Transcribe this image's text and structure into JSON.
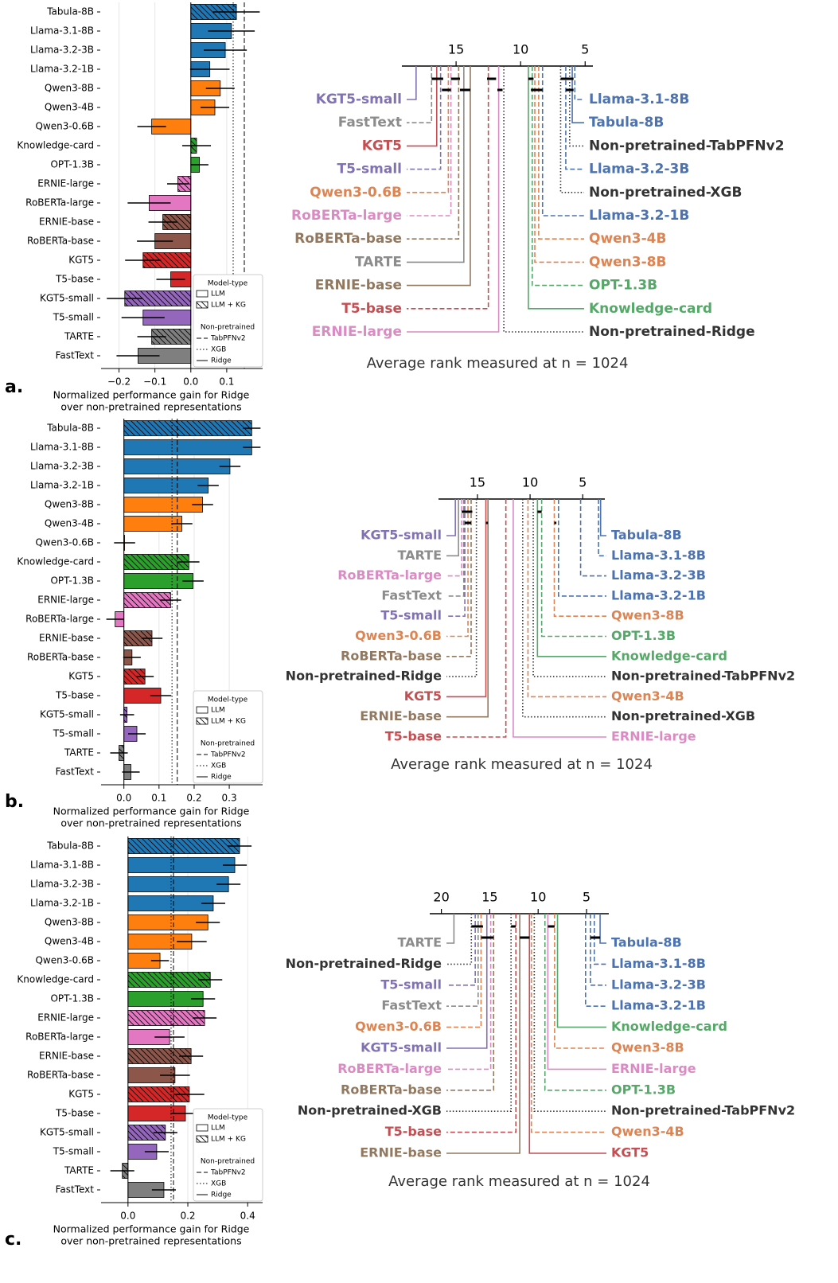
{
  "panel_labels": [
    "a.",
    "b.",
    "c."
  ],
  "chart_data": [
    {
      "type": "bar",
      "orientation": "horizontal",
      "categories": [
        "Tabula-8B",
        "Llama-3.1-8B",
        "Llama-3.2-3B",
        "Llama-3.2-1B",
        "Qwen3-8B",
        "Qwen3-4B",
        "Qwen3-0.6B",
        "Knowledge-card",
        "OPT-1.3B",
        "ERNIE-large",
        "RoBERTa-large",
        "ERNIE-base",
        "RoBERTa-base",
        "KGT5",
        "T5-base",
        "KGT5-small",
        "T5-small",
        "TARTE",
        "FastText"
      ],
      "values": [
        0.127,
        0.113,
        0.096,
        0.053,
        0.082,
        0.067,
        -0.109,
        0.016,
        0.024,
        -0.036,
        -0.116,
        -0.078,
        -0.1,
        -0.133,
        -0.056,
        -0.184,
        -0.133,
        -0.109,
        -0.147
      ],
      "errors": [
        0.065,
        0.065,
        0.06,
        0.055,
        0.04,
        0.04,
        0.04,
        0.04,
        0.025,
        0.03,
        0.06,
        0.04,
        0.05,
        0.05,
        0.04,
        0.05,
        0.06,
        0.04,
        0.06
      ],
      "colors": [
        "#1f77b4",
        "#1f77b4",
        "#1f77b4",
        "#1f77b4",
        "#ff7f0e",
        "#ff7f0e",
        "#ff7f0e",
        "#2ca02c",
        "#2ca02c",
        "#e377c2",
        "#e377c2",
        "#8c564b",
        "#8c564b",
        "#d62728",
        "#d62728",
        "#9467bd",
        "#9467bd",
        "#7f7f7f",
        "#7f7f7f"
      ],
      "hatched": [
        true,
        false,
        false,
        false,
        false,
        false,
        false,
        true,
        false,
        true,
        false,
        true,
        false,
        true,
        false,
        true,
        false,
        true,
        false
      ],
      "xlim": [
        -0.25,
        0.2
      ],
      "xticks": [
        {
          "value": -0.2,
          "label": "−0.2"
        },
        {
          "value": -0.1,
          "label": "−0.1"
        },
        {
          "value": 0,
          "label": "0.0"
        },
        0.1
      ],
      "grid": true,
      "xlabel": [
        "Normalized performance gain for Ridge",
        "over non-pretrained representations"
      ],
      "reference_title": "Non-pretrained",
      "reference_lines": [
        {
          "name": "TabPFNv2",
          "value": 0.149,
          "style": "dashed"
        },
        {
          "name": "XGB",
          "value": 0.118,
          "style": "dotted"
        },
        {
          "name": "Ridge",
          "value": 0,
          "style": "solid"
        }
      ],
      "legend": {
        "title": "Model-type",
        "items": [
          "LLM",
          "LLM + KG"
        ]
      }
    },
    {
      "type": "cd",
      "xlim": [
        19.2,
        4.4
      ],
      "xticks": [
        15,
        10,
        5
      ],
      "xlabel": "Average rank measured at n = 1024",
      "left_methods": [
        {
          "name": "KGT5-small",
          "rank": 18.1,
          "color": "#8172b3",
          "style": "solid"
        },
        {
          "name": "FastText",
          "rank": 16.9,
          "color": "#8c8c8c",
          "style": "dashed"
        },
        {
          "name": "KGT5",
          "rank": 16.5,
          "color": "#c44e52",
          "style": "solid"
        },
        {
          "name": "T5-small",
          "rank": 16.2,
          "color": "#8172b3",
          "style": "dashed"
        },
        {
          "name": "Qwen3-0.6B",
          "rank": 15.6,
          "color": "#dd8452",
          "style": "dashed"
        },
        {
          "name": "RoBERTa-large",
          "rank": 15.4,
          "color": "#da8bc3",
          "style": "dashed"
        },
        {
          "name": "RoBERTa-base",
          "rank": 14.8,
          "color": "#937860",
          "style": "dashed"
        },
        {
          "name": "TARTE",
          "rank": 14.4,
          "color": "#8c8c8c",
          "style": "solid"
        },
        {
          "name": "ERNIE-base",
          "rank": 13.9,
          "color": "#937860",
          "style": "solid"
        },
        {
          "name": "T5-base",
          "rank": 12.5,
          "color": "#c44e52",
          "style": "dashed"
        },
        {
          "name": "ERNIE-large",
          "rank": 11.7,
          "color": "#da8bc3",
          "style": "solid"
        }
      ],
      "right_methods": [
        {
          "name": "Llama-3.1-8B",
          "rank": 5.8,
          "color": "#4c72b0",
          "style": "dashed"
        },
        {
          "name": "Tabula-8B",
          "rank": 6.0,
          "color": "#4c72b0",
          "style": "solid"
        },
        {
          "name": "Non-pretrained-TabPFNv2",
          "rank": 6.2,
          "color": "#333333",
          "style": "dotted"
        },
        {
          "name": "Llama-3.2-3B",
          "rank": 6.5,
          "color": "#4c72b0",
          "style": "dashed"
        },
        {
          "name": "Non-pretrained-XGB",
          "rank": 6.9,
          "color": "#333333",
          "style": "dotted"
        },
        {
          "name": "Llama-3.2-1B",
          "rank": 8.3,
          "color": "#4c72b0",
          "style": "dashed"
        },
        {
          "name": "Qwen3-4B",
          "rank": 8.6,
          "color": "#dd8452",
          "style": "dashed"
        },
        {
          "name": "Qwen3-8B",
          "rank": 8.9,
          "color": "#dd8452",
          "style": "dashed"
        },
        {
          "name": "OPT-1.3B",
          "rank": 9.1,
          "color": "#55a868",
          "style": "dashed"
        },
        {
          "name": "Knowledge-card",
          "rank": 9.4,
          "color": "#55a868",
          "style": "solid"
        },
        {
          "name": "Non-pretrained-Ridge",
          "rank": 11.3,
          "color": "#333333",
          "style": "dotted"
        }
      ],
      "cliques": [
        [
          16.9,
          16.0
        ],
        [
          16.1,
          15.4
        ],
        [
          15.4,
          14.7
        ],
        [
          14.7,
          13.9
        ],
        [
          12.6,
          11.9
        ],
        [
          11.8,
          11.4
        ],
        [
          9.4,
          9.0
        ],
        [
          9.2,
          8.3
        ],
        [
          6.9,
          5.9
        ],
        [
          6.5,
          5.9
        ]
      ]
    },
    {
      "type": "bar",
      "orientation": "horizontal",
      "categories": [
        "Tabula-8B",
        "Llama-3.1-8B",
        "Llama-3.2-3B",
        "Llama-3.2-1B",
        "Qwen3-8B",
        "Qwen3-4B",
        "Qwen3-0.6B",
        "Knowledge-card",
        "OPT-1.3B",
        "ERNIE-large",
        "RoBERTa-large",
        "ERNIE-base",
        "RoBERTa-base",
        "KGT5",
        "T5-base",
        "KGT5-small",
        "T5-small",
        "TARTE",
        "FastText"
      ],
      "values": [
        0.364,
        0.364,
        0.302,
        0.24,
        0.224,
        0.165,
        0.002,
        0.185,
        0.197,
        0.133,
        -0.025,
        0.08,
        0.023,
        0.06,
        0.105,
        0.009,
        0.037,
        -0.014,
        0.02
      ],
      "errors": [
        0.025,
        0.025,
        0.03,
        0.03,
        0.03,
        0.03,
        0.03,
        0.03,
        0.03,
        0.03,
        0.025,
        0.03,
        0.025,
        0.025,
        0.03,
        0.02,
        0.025,
        0.025,
        0.025
      ],
      "colors": [
        "#1f77b4",
        "#1f77b4",
        "#1f77b4",
        "#1f77b4",
        "#ff7f0e",
        "#ff7f0e",
        "#ff7f0e",
        "#2ca02c",
        "#2ca02c",
        "#e377c2",
        "#e377c2",
        "#8c564b",
        "#8c564b",
        "#d62728",
        "#d62728",
        "#9467bd",
        "#9467bd",
        "#7f7f7f",
        "#7f7f7f"
      ],
      "hatched": [
        true,
        false,
        false,
        false,
        false,
        false,
        false,
        true,
        false,
        true,
        false,
        true,
        false,
        true,
        false,
        true,
        false,
        true,
        false
      ],
      "xlim": [
        -0.065,
        0.395
      ],
      "xticks": [
        {
          "value": 0,
          "label": "0.0"
        },
        0.1,
        0.2,
        0.3
      ],
      "grid": true,
      "xlabel": [
        "Normalized performance gain for Ridge",
        "over non-pretrained representations"
      ],
      "reference_title": "Non-pretrained",
      "reference_lines": [
        {
          "name": "TabPFNv2",
          "value": 0.152,
          "style": "dashed"
        },
        {
          "name": "XGB",
          "value": 0.137,
          "style": "dotted"
        },
        {
          "name": "Ridge",
          "value": 0,
          "style": "solid"
        }
      ],
      "legend": {
        "title": "Model-type",
        "items": [
          "LLM",
          "LLM + KG"
        ]
      }
    },
    {
      "type": "cd",
      "xlim": [
        18.7,
        2.9
      ],
      "xticks": [
        15,
        10,
        5
      ],
      "xlabel": "Average rank measured at n = 1024",
      "left_methods": [
        {
          "name": "KGT5-small",
          "rank": 17.1,
          "color": "#8172b3",
          "style": "solid"
        },
        {
          "name": "TARTE",
          "rank": 16.8,
          "color": "#8c8c8c",
          "style": "solid"
        },
        {
          "name": "RoBERTa-large",
          "rank": 16.5,
          "color": "#da8bc3",
          "style": "dashed"
        },
        {
          "name": "FastText",
          "rank": 16.3,
          "color": "#8c8c8c",
          "style": "dashed"
        },
        {
          "name": "T5-small",
          "rank": 16.2,
          "color": "#8172b3",
          "style": "dashed"
        },
        {
          "name": "Qwen3-0.6B",
          "rank": 15.9,
          "color": "#dd8452",
          "style": "dashed"
        },
        {
          "name": "RoBERTa-base",
          "rank": 15.6,
          "color": "#937860",
          "style": "dashed"
        },
        {
          "name": "Non-pretrained-Ridge",
          "rank": 15.1,
          "color": "#333333",
          "style": "dotted"
        },
        {
          "name": "KGT5",
          "rank": 14.2,
          "color": "#c44e52",
          "style": "solid"
        },
        {
          "name": "ERNIE-base",
          "rank": 14.0,
          "color": "#937860",
          "style": "solid"
        },
        {
          "name": "T5-base",
          "rank": 12.3,
          "color": "#c44e52",
          "style": "dashed"
        }
      ],
      "right_methods": [
        {
          "name": "Tabula-8B",
          "rank": 3.3,
          "color": "#4c72b0",
          "style": "solid"
        },
        {
          "name": "Llama-3.1-8B",
          "rank": 3.5,
          "color": "#4c72b0",
          "style": "dashed"
        },
        {
          "name": "Llama-3.2-3B",
          "rank": 5.2,
          "color": "#4c72b0",
          "style": "dashed"
        },
        {
          "name": "Llama-3.2-1B",
          "rank": 7.3,
          "color": "#4c72b0",
          "style": "dashed"
        },
        {
          "name": "Qwen3-8B",
          "rank": 7.7,
          "color": "#dd8452",
          "style": "dashed"
        },
        {
          "name": "OPT-1.3B",
          "rank": 8.9,
          "color": "#55a868",
          "style": "dashed"
        },
        {
          "name": "Knowledge-card",
          "rank": 9.3,
          "color": "#55a868",
          "style": "solid"
        },
        {
          "name": "Non-pretrained-TabPFNv2",
          "rank": 9.7,
          "color": "#333333",
          "style": "dotted"
        },
        {
          "name": "Qwen3-4B",
          "rank": 10.2,
          "color": "#dd8452",
          "style": "dashed"
        },
        {
          "name": "Non-pretrained-XGB",
          "rank": 10.7,
          "color": "#333333",
          "style": "dotted"
        },
        {
          "name": "ERNIE-large",
          "rank": 11.6,
          "color": "#da8bc3",
          "style": "solid"
        }
      ],
      "cliques": [
        [
          16.5,
          15.5
        ],
        [
          16.2,
          15.6
        ],
        [
          15.9,
          15.5
        ],
        [
          14.2,
          14.0
        ],
        [
          9.3,
          8.9
        ],
        [
          7.7,
          7.5
        ]
      ]
    },
    {
      "type": "bar",
      "orientation": "horizontal",
      "categories": [
        "Tabula-8B",
        "Llama-3.1-8B",
        "Llama-3.2-3B",
        "Llama-3.2-1B",
        "Qwen3-8B",
        "Qwen3-4B",
        "Qwen3-0.6B",
        "Knowledge-card",
        "OPT-1.3B",
        "ERNIE-large",
        "RoBERTa-large",
        "ERNIE-base",
        "RoBERTa-base",
        "KGT5",
        "T5-base",
        "KGT5-small",
        "T5-small",
        "TARTE",
        "FastText"
      ],
      "values": [
        0.373,
        0.357,
        0.336,
        0.285,
        0.267,
        0.213,
        0.107,
        0.275,
        0.251,
        0.256,
        0.139,
        0.211,
        0.157,
        0.205,
        0.192,
        0.125,
        0.096,
        -0.019,
        0.12
      ],
      "errors": [
        0.04,
        0.04,
        0.04,
        0.04,
        0.04,
        0.05,
        0.03,
        0.04,
        0.04,
        0.04,
        0.05,
        0.04,
        0.05,
        0.05,
        0.05,
        0.04,
        0.04,
        0.04,
        0.04
      ],
      "colors": [
        "#1f77b4",
        "#1f77b4",
        "#1f77b4",
        "#1f77b4",
        "#ff7f0e",
        "#ff7f0e",
        "#ff7f0e",
        "#2ca02c",
        "#2ca02c",
        "#e377c2",
        "#e377c2",
        "#8c564b",
        "#8c564b",
        "#d62728",
        "#d62728",
        "#9467bd",
        "#9467bd",
        "#7f7f7f",
        "#7f7f7f"
      ],
      "hatched": [
        true,
        false,
        false,
        false,
        false,
        false,
        false,
        true,
        false,
        true,
        false,
        true,
        false,
        true,
        false,
        true,
        false,
        true,
        false
      ],
      "xlim": [
        -0.09,
        0.45
      ],
      "xticks": [
        {
          "value": 0,
          "label": "0.0"
        },
        0.2,
        0.4
      ],
      "grid": true,
      "xlabel": [
        "Normalized performance gain for Ridge",
        "over non-pretrained representations"
      ],
      "reference_title": "Non-pretrained",
      "reference_lines": [
        {
          "name": "TabPFNv2",
          "value": 0.152,
          "style": "dashed"
        },
        {
          "name": "XGB",
          "value": 0.144,
          "style": "dotted"
        },
        {
          "name": "Ridge",
          "value": 0,
          "style": "solid"
        }
      ],
      "legend": {
        "title": "Model-type",
        "items": [
          "LLM",
          "LLM + KG"
        ]
      }
    },
    {
      "type": "cd",
      "xlim": [
        21.2,
        2.7
      ],
      "xticks": [
        20,
        15,
        10,
        5
      ],
      "xlabel": "Average rank measured at n = 1024",
      "left_methods": [
        {
          "name": "TARTE",
          "rank": 18.7,
          "color": "#8c8c8c",
          "style": "solid"
        },
        {
          "name": "Non-pretrained-Ridge",
          "rank": 16.9,
          "color": "#333333",
          "style": "dotted"
        },
        {
          "name": "T5-small",
          "rank": 16.5,
          "color": "#8172b3",
          "style": "dashed"
        },
        {
          "name": "FastText",
          "rank": 16.2,
          "color": "#8c8c8c",
          "style": "dashed"
        },
        {
          "name": "Qwen3-0.6B",
          "rank": 15.9,
          "color": "#dd8452",
          "style": "dashed"
        },
        {
          "name": "KGT5-small",
          "rank": 15.3,
          "color": "#8172b3",
          "style": "solid"
        },
        {
          "name": "RoBERTa-large",
          "rank": 14.9,
          "color": "#da8bc3",
          "style": "dashed"
        },
        {
          "name": "RoBERTa-base",
          "rank": 14.6,
          "color": "#937860",
          "style": "dashed"
        },
        {
          "name": "Non-pretrained-XGB",
          "rank": 12.8,
          "color": "#333333",
          "style": "dotted"
        },
        {
          "name": "T5-base",
          "rank": 12.3,
          "color": "#c44e52",
          "style": "dashed"
        },
        {
          "name": "ERNIE-base",
          "rank": 11.9,
          "color": "#937860",
          "style": "solid"
        }
      ],
      "right_methods": [
        {
          "name": "Tabula-8B",
          "rank": 3.6,
          "color": "#4c72b0",
          "style": "solid"
        },
        {
          "name": "Llama-3.1-8B",
          "rank": 4.2,
          "color": "#4c72b0",
          "style": "dashed"
        },
        {
          "name": "Llama-3.2-3B",
          "rank": 4.6,
          "color": "#4c72b0",
          "style": "dashed"
        },
        {
          "name": "Llama-3.2-1B",
          "rank": 5.1,
          "color": "#4c72b0",
          "style": "dashed"
        },
        {
          "name": "Knowledge-card",
          "rank": 8.0,
          "color": "#55a868",
          "style": "solid"
        },
        {
          "name": "Qwen3-8B",
          "rank": 8.3,
          "color": "#dd8452",
          "style": "dashed"
        },
        {
          "name": "ERNIE-large",
          "rank": 9.0,
          "color": "#da8bc3",
          "style": "solid"
        },
        {
          "name": "OPT-1.3B",
          "rank": 9.3,
          "color": "#55a868",
          "style": "dashed"
        },
        {
          "name": "Non-pretrained-TabPFNv2",
          "rank": 10.4,
          "color": "#333333",
          "style": "dotted"
        },
        {
          "name": "Qwen3-4B",
          "rank": 10.7,
          "color": "#dd8452",
          "style": "dashed"
        },
        {
          "name": "KGT5",
          "rank": 10.9,
          "color": "#c44e52",
          "style": "solid"
        }
      ],
      "cliques": [
        [
          16.9,
          15.7
        ],
        [
          15.9,
          14.6
        ],
        [
          12.8,
          12.3
        ],
        [
          11.9,
          10.9
        ],
        [
          9.0,
          8.3
        ],
        [
          4.6,
          3.6
        ]
      ]
    }
  ]
}
